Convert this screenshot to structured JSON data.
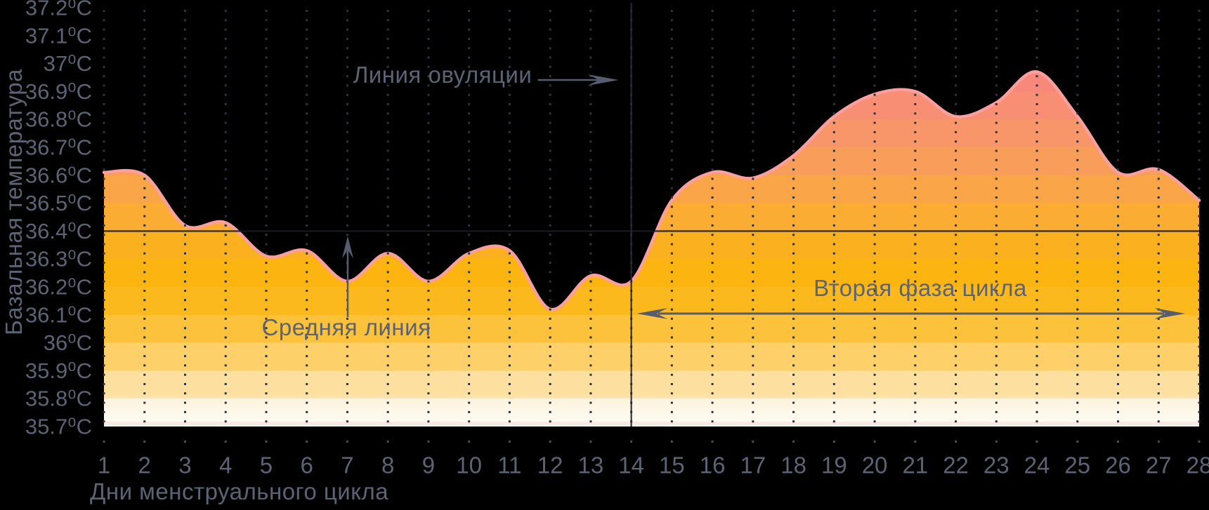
{
  "chart_data": {
    "type": "area",
    "title": "",
    "xlabel": "Дни менструального цикла",
    "ylabel": "Базальная температура",
    "x": [
      1,
      2,
      3,
      4,
      5,
      6,
      7,
      8,
      9,
      10,
      11,
      12,
      13,
      14,
      15,
      16,
      17,
      18,
      19,
      20,
      21,
      22,
      23,
      24,
      25,
      26,
      27,
      28
    ],
    "values": [
      36.61,
      36.6,
      36.42,
      36.43,
      36.31,
      36.33,
      36.22,
      36.32,
      36.22,
      36.32,
      36.33,
      36.12,
      36.24,
      36.22,
      36.51,
      36.61,
      36.59,
      36.67,
      36.81,
      36.89,
      36.9,
      36.81,
      36.86,
      36.97,
      36.81,
      36.61,
      36.62,
      36.51
    ],
    "ylim": [
      35.7,
      37.2
    ],
    "xlim": [
      1,
      28
    ],
    "grid": "dotted-vertical-per-day",
    "legend": "none",
    "y_ticks": [
      {
        "value": 37.2,
        "label": "37.2⁰C"
      },
      {
        "value": 37.1,
        "label": "37.1⁰C"
      },
      {
        "value": 37.0,
        "label": "37⁰C"
      },
      {
        "value": 36.9,
        "label": "36.9⁰C"
      },
      {
        "value": 36.8,
        "label": "36.8⁰C"
      },
      {
        "value": 36.7,
        "label": "36.7⁰C"
      },
      {
        "value": 36.6,
        "label": "36.6⁰C"
      },
      {
        "value": 36.5,
        "label": "36.5⁰C"
      },
      {
        "value": 36.4,
        "label": "36.4⁰C"
      },
      {
        "value": 36.3,
        "label": "36.3⁰C"
      },
      {
        "value": 36.2,
        "label": "36.2⁰C"
      },
      {
        "value": 36.1,
        "label": "36.1⁰C"
      },
      {
        "value": 36.0,
        "label": "36⁰C"
      },
      {
        "value": 35.9,
        "label": "35.9⁰C"
      },
      {
        "value": 35.8,
        "label": "35.8⁰C"
      },
      {
        "value": 35.7,
        "label": "35.7⁰C"
      }
    ],
    "middle_line": {
      "value": 36.4,
      "label": "Средняя линия"
    },
    "ovulation": {
      "day": 14,
      "label": "Линия овуляции"
    },
    "second_phase": {
      "from_day": 14,
      "to_day": 28,
      "label": "Вторая фаза цикла"
    },
    "colors": {
      "background": "#000000",
      "text": "#5c6374",
      "arrow": "#565d6e",
      "grid_dot": "#2f333e",
      "curve_stroke": "#fa9f9d",
      "middle_line": "#1a1c24",
      "ovulation_line": "#262a35",
      "bottom_edge_pink": "#f7d3cf",
      "band_colors_top_to_bottom": [
        "#f8837f",
        "#f8857d",
        "#f8887a",
        "#f88e73",
        "#f89569",
        "#f99d5a",
        "#faa548",
        "#fbac33",
        "#fbb01f",
        "#fcb411",
        "#fcb91d",
        "#fcc23c",
        "#fdd069",
        "#fde0a0",
        "#fcf0d7"
      ]
    }
  }
}
